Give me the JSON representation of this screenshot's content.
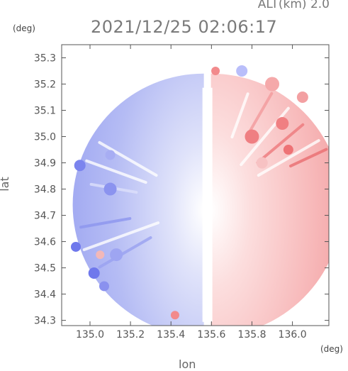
{
  "header": {
    "altitude_label": "ALT(km) 2.0",
    "timestamp": "2021/12/25 02:06:17"
  },
  "chart_data": {
    "type": "heatmap",
    "title": "2021/12/25 02:06:17",
    "xlabel": "lon",
    "ylabel": "lat",
    "x_unit": "(deg)",
    "y_unit": "(deg)",
    "xlim": [
      134.86,
      136.18
    ],
    "ylim": [
      34.28,
      35.35
    ],
    "x_ticks": [
      135.0,
      135.2,
      135.4,
      135.6,
      135.8,
      136.0
    ],
    "x_tick_labels": [
      "135.0",
      "135.2",
      "135.4",
      "135.6",
      "135.8",
      "136.0"
    ],
    "y_ticks": [
      34.3,
      34.4,
      34.5,
      34.6,
      34.7,
      34.8,
      34.9,
      35.0,
      35.1,
      35.2,
      35.3
    ],
    "y_tick_labels": [
      "34.3",
      "34.4",
      "34.5",
      "34.6",
      "34.7",
      "34.8",
      "34.9",
      "35.0",
      "35.1",
      "35.2",
      "35.3"
    ],
    "grid": false,
    "radar_center": [
      135.58,
      34.74
    ],
    "radar_range_lat": 0.5,
    "color_negative": "#7b84ee",
    "color_positive": "#f07f82",
    "color_zero": "#ffffff"
  }
}
